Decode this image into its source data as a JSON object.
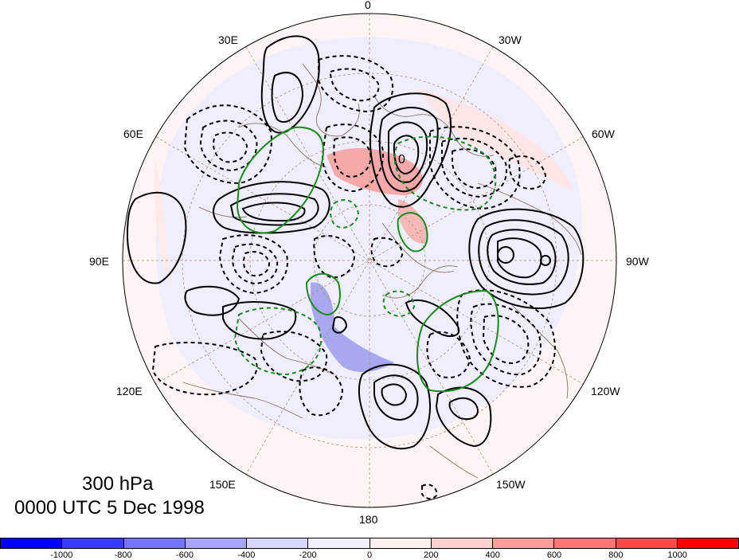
{
  "map": {
    "projection": "north-polar-stereographic",
    "longitude_labels": {
      "top": "0",
      "top_left": "30E",
      "top_right": "30W",
      "upper_left": "60E",
      "upper_right": "60W",
      "left": "90E",
      "right": "90W",
      "lower_left": "120E",
      "lower_right": "120W",
      "bottom_left": "150E",
      "bottom_right": "150W",
      "bottom": "180"
    },
    "contour_label": "0"
  },
  "title": {
    "level": "300 hPa",
    "time": "0000 UTC 5 Dec 1998"
  },
  "colorbar": {
    "colors": [
      "#0000ff",
      "#3b3bff",
      "#7474ff",
      "#a6a6ff",
      "#d6d6ff",
      "#f0f0ff",
      "#fff0f0",
      "#ffd0d0",
      "#ff9c9c",
      "#ff7474",
      "#ff4848",
      "#ff0000"
    ],
    "ticks": [
      "-1000",
      "-800",
      "-600",
      "-400",
      "-200",
      "0",
      "200",
      "400",
      "600",
      "800",
      "1000"
    ]
  },
  "colors": {
    "positive_contour": "#000000",
    "negative_contour": "#000000",
    "green_contour": "#1a8a1a",
    "coastline": "#8b7355",
    "grid": "#a08060"
  }
}
